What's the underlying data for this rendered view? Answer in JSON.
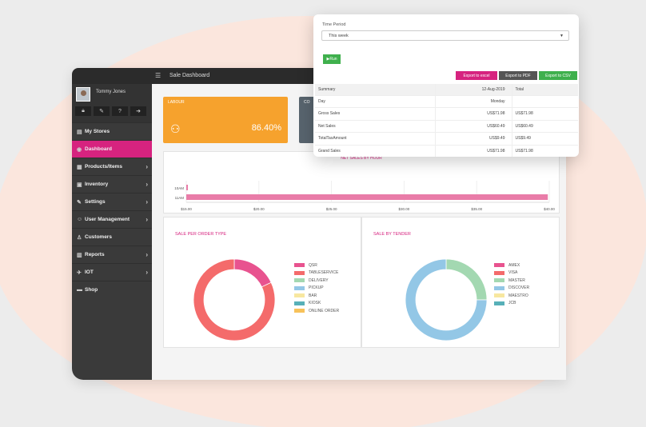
{
  "app": {
    "title": "Sale Dashboard"
  },
  "user": {
    "name": "Tommy Jones",
    "icons": [
      "lock-icon",
      "edit-icon",
      "help-icon",
      "logout-icon"
    ]
  },
  "sidebar": {
    "items": [
      {
        "label": "My Stores",
        "icon": "store-icon",
        "chevron": false
      },
      {
        "label": "Dashboard",
        "icon": "dashboard-icon",
        "chevron": false,
        "active": true
      },
      {
        "label": "Products/Items",
        "icon": "products-icon",
        "chevron": true
      },
      {
        "label": "Inventory",
        "icon": "inventory-icon",
        "chevron": true
      },
      {
        "label": "Settings",
        "icon": "settings-icon",
        "chevron": true
      },
      {
        "label": "User Management",
        "icon": "users-icon",
        "chevron": true
      },
      {
        "label": "Customers",
        "icon": "customer-icon",
        "chevron": false
      },
      {
        "label": "Reports",
        "icon": "reports-icon",
        "chevron": true
      },
      {
        "label": "IOT",
        "icon": "iot-icon",
        "chevron": true
      },
      {
        "label": "Shop",
        "icon": "shop-icon",
        "chevron": false
      }
    ]
  },
  "cards": [
    {
      "label": "LABOUR",
      "value": "86.40%",
      "color": "#f6a22d"
    },
    {
      "label": "CO",
      "color": "#58646e"
    }
  ],
  "hourly_chart": {
    "title": "NET SALES BY HOUR",
    "rows": [
      {
        "label": "10AM",
        "value": 15.1
      },
      {
        "label": "11AM",
        "value": 39.9
      }
    ],
    "xticks": [
      "$15.00",
      "$20.00",
      "$25.00",
      "$30.00",
      "$35.00",
      "$40.00"
    ],
    "xmin": 15,
    "xmax": 40,
    "color": "#e97ca8"
  },
  "order_type": {
    "title": "SALE PER ORDER TYPE",
    "legend": [
      {
        "label": "QSR",
        "color": "#e8538f"
      },
      {
        "label": "TABLESERVICE",
        "color": "#f46b6b"
      },
      {
        "label": "DELIVERY",
        "color": "#a3d8b1"
      },
      {
        "label": "PICKUP",
        "color": "#93c7e6"
      },
      {
        "label": "BAR",
        "color": "#f7e7a0"
      },
      {
        "label": "KIOSK",
        "color": "#57b0b8"
      },
      {
        "label": "ONLINE ORDER",
        "color": "#f7c25a"
      }
    ],
    "slices": [
      {
        "name": "QSR",
        "value": 18
      },
      {
        "name": "TABLESERVICE",
        "value": 82
      }
    ]
  },
  "tender": {
    "title": "SALE BY TENDER",
    "legend": [
      {
        "label": "AMEX",
        "color": "#e8538f"
      },
      {
        "label": "VISA",
        "color": "#f46b6b"
      },
      {
        "label": "MASTER",
        "color": "#a3d8b1"
      },
      {
        "label": "DISCOVER",
        "color": "#93c7e6"
      },
      {
        "label": "MAESTRO",
        "color": "#f7e7a0"
      },
      {
        "label": "JCB",
        "color": "#57b0b8"
      }
    ],
    "slices": [
      {
        "name": "MASTER",
        "value": 25
      },
      {
        "name": "DISCOVER",
        "value": 75
      }
    ]
  },
  "report": {
    "time_period_label": "Time Period",
    "time_period_value": "This week",
    "run_label": "Run",
    "export": [
      {
        "label": "Export to excel",
        "color": "#d6237f"
      },
      {
        "label": "Export to PDF",
        "color": "#555555"
      },
      {
        "label": "Export to CSV",
        "color": "#3fb04d"
      }
    ],
    "columns": [
      "Summary",
      "12-Aug-2019",
      "Total"
    ],
    "rows": [
      [
        "Day",
        "Monday",
        ""
      ],
      [
        "Gross Sales",
        "US$71.98",
        "US$71.98"
      ],
      [
        "Net Sales",
        "US$60.49",
        "US$60.49"
      ],
      [
        "TotalTaxAmount",
        "US$9.49",
        "US$9.49"
      ],
      [
        "Grand Sales",
        "US$71.98",
        "US$71.98"
      ]
    ]
  }
}
